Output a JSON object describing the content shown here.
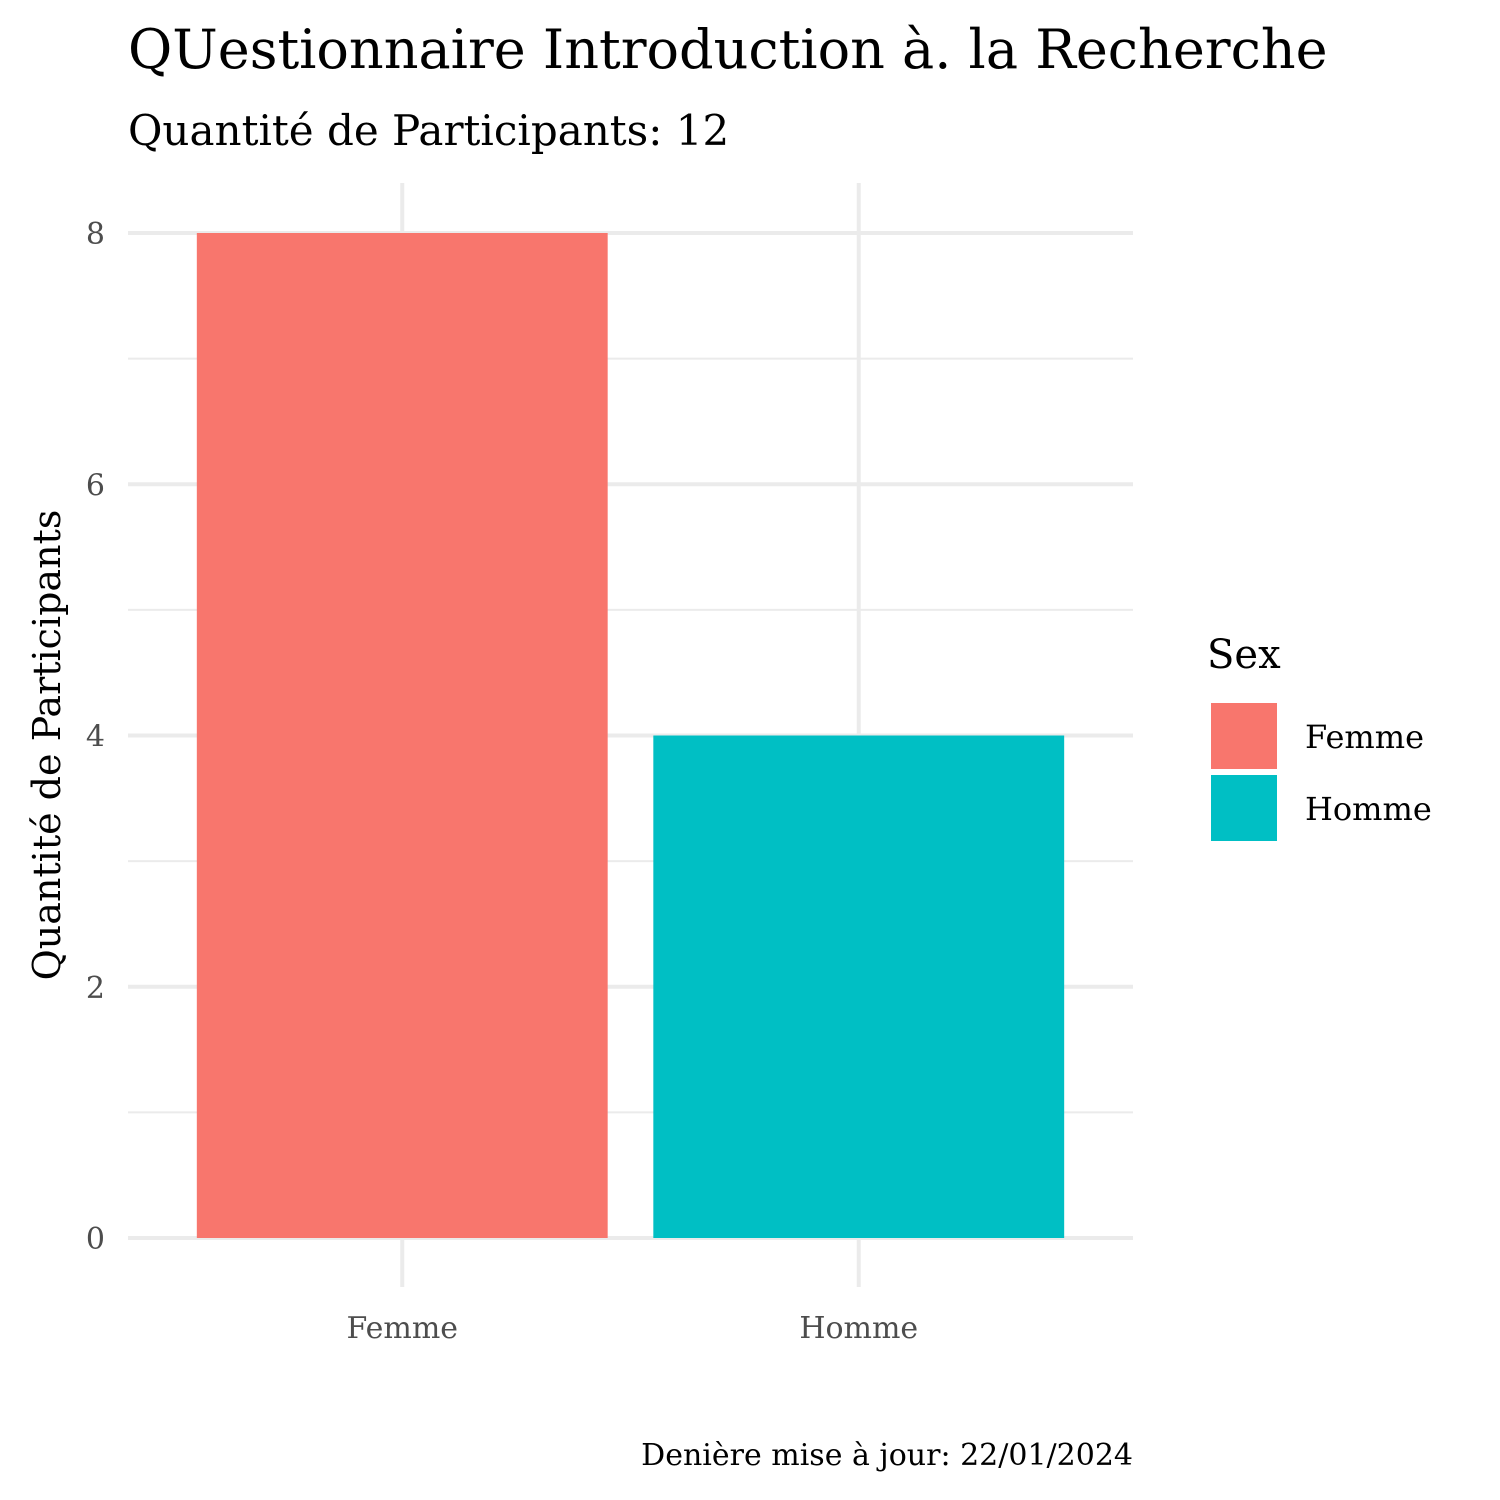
{
  "chart_data": {
    "type": "bar",
    "title": "QUestionnaire Introduction à. la Recherche",
    "subtitle": "Quantité de Participants: 12",
    "xlabel": "",
    "ylabel": "Quantité de Participants",
    "categories": [
      "Femme",
      "Homme"
    ],
    "values": [
      8,
      4
    ],
    "colors": [
      "#F8766D",
      "#00BFC4"
    ],
    "ylim": [
      0,
      8
    ],
    "yticks": [
      0,
      2,
      4,
      6,
      8
    ],
    "ytick_labels": [
      "0",
      "2",
      "4",
      "6",
      "8"
    ],
    "grid": true,
    "legend": {
      "title": "Sex",
      "placement": "right",
      "entries": [
        {
          "label": "Femme",
          "color": "#F8766D"
        },
        {
          "label": "Homme",
          "color": "#00BFC4"
        }
      ]
    },
    "caption": "Denière mise à jour:  22/01/2024"
  }
}
